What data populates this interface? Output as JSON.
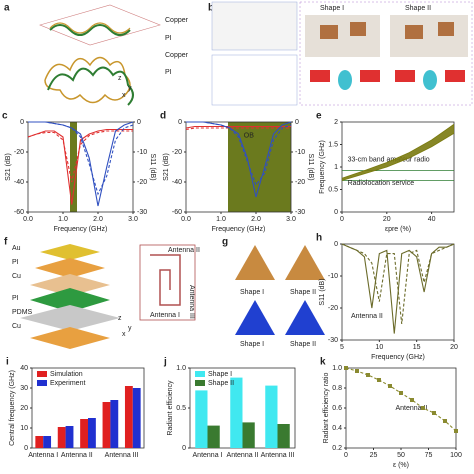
{
  "diagrams": {
    "a": {
      "label": "a",
      "texts": [
        "Copper",
        "PI",
        "Copper",
        "PI"
      ],
      "axes": [
        "z",
        "y",
        "x"
      ]
    },
    "b": {
      "label": "b",
      "texts": [
        "Shape I",
        "Shape II"
      ]
    },
    "f": {
      "label": "f",
      "texts": [
        "Au",
        "PI",
        "Cu",
        "PI",
        "PDMS",
        "Cu",
        "Antenna II",
        "Antenna III",
        "Antenna I"
      ],
      "axes": [
        "z",
        "y",
        "x"
      ]
    },
    "g": {
      "label": "g",
      "texts": [
        "Shape I",
        "Shape II",
        "Shape I",
        "Shape II"
      ]
    }
  },
  "chart_data": [
    {
      "panel": "c",
      "type": "line",
      "xlabel": "Frequency (GHz)",
      "ylabel": "S21 (dB)",
      "y2label": "S11 (dB)",
      "x": [
        0,
        0.25,
        0.5,
        0.75,
        1.0,
        1.25,
        1.5,
        1.75,
        2.0,
        2.25,
        2.5,
        2.75,
        3.0
      ],
      "xlim": [
        0,
        3
      ],
      "xticks": [
        {
          "value": 0,
          "label": "0.0"
        },
        {
          "value": 1,
          "label": "1.0"
        },
        {
          "value": 2,
          "label": "2.0"
        },
        {
          "value": 3,
          "label": "3.0"
        }
      ],
      "ylim": [
        -60,
        0
      ],
      "yticks": [
        0,
        -20,
        -40,
        -60
      ],
      "y2lim": [
        -30,
        0
      ],
      "y2ticks": [
        0,
        -10,
        -20,
        -30
      ],
      "shade": [
        1.2,
        1.4
      ],
      "shade_color": "#6b7a1e",
      "series": [
        {
          "color": "#e03030",
          "values": [
            -10,
            -8,
            -6,
            -6,
            -10,
            -55,
            -12,
            -8,
            -6,
            -5,
            -5,
            -5,
            -5
          ]
        },
        {
          "color": "#e03030",
          "dash": true,
          "values": [
            -10,
            -8,
            -7,
            -7,
            -12,
            -40,
            -15,
            -9,
            -7,
            -6,
            -6,
            -6,
            -6
          ]
        },
        {
          "color": "#3050c0",
          "axis": "y2",
          "values": [
            0,
            0,
            0,
            -0.5,
            -1,
            -2,
            -4,
            -12,
            -28,
            -15,
            -3,
            -1,
            0
          ]
        },
        {
          "color": "#3050c0",
          "axis": "y2",
          "dash": true,
          "values": [
            0,
            0,
            0,
            -0.5,
            -1,
            -2,
            -5,
            -14,
            -24,
            -18,
            -6,
            -2,
            -1
          ]
        }
      ]
    },
    {
      "panel": "d",
      "type": "line",
      "xlabel": "Frequency (GHz)",
      "ylabel": "S21 (dB)",
      "y2label": "S11 (dB)",
      "annotations": [
        "OB"
      ],
      "x": [
        0,
        0.25,
        0.5,
        0.75,
        1.0,
        1.25,
        1.5,
        1.75,
        2.0,
        2.25,
        2.5,
        2.75,
        3.0
      ],
      "xlim": [
        0,
        3
      ],
      "xticks": [
        {
          "value": 0,
          "label": "0.0"
        },
        {
          "value": 1,
          "label": "1.0"
        },
        {
          "value": 2,
          "label": "2.0"
        },
        {
          "value": 3,
          "label": "3.0"
        }
      ],
      "ylim": [
        -60,
        0
      ],
      "yticks": [
        0,
        -20,
        -40,
        -60
      ],
      "y2lim": [
        -30,
        0
      ],
      "y2ticks": [
        0,
        -10,
        -20,
        -30
      ],
      "shade": [
        1.2,
        3.0
      ],
      "shade_color": "#6b7a1e",
      "series": [
        {
          "color": "#e03030",
          "values": [
            -4,
            -3,
            -3,
            -3,
            -3,
            -3,
            -3,
            -3,
            -3,
            -3,
            -3,
            -3,
            -3
          ]
        },
        {
          "color": "#e03030",
          "dash": true,
          "values": [
            -5,
            -4,
            -4,
            -4,
            -4,
            -4,
            -4,
            -4,
            -4,
            -4,
            -4,
            -4,
            -4
          ]
        },
        {
          "color": "#3050c0",
          "axis": "y2",
          "values": [
            0,
            0,
            0,
            -0.5,
            -1,
            -2,
            -4,
            -12,
            -25,
            -15,
            -4,
            -1,
            0
          ]
        },
        {
          "color": "#3050c0",
          "axis": "y2",
          "dash": true,
          "values": [
            0,
            0,
            0,
            -0.5,
            -1,
            -2,
            -5,
            -13,
            -21,
            -17,
            -6,
            -2,
            -1
          ]
        }
      ]
    },
    {
      "panel": "e",
      "type": "band",
      "xlabel": "εpre (%)",
      "ylabel": "Frequency (GHz)",
      "annotations": [
        "33-cm band amateur radio",
        "Radiolocation service"
      ],
      "x": [
        0,
        10,
        20,
        30,
        40,
        50
      ],
      "xlim": [
        0,
        50
      ],
      "xticks": [
        0,
        20,
        40
      ],
      "ylim": [
        0,
        2
      ],
      "yticks": [
        0,
        0.5,
        1,
        1.5,
        2
      ],
      "hlines": [
        0.92,
        0.7
      ],
      "series": [
        {
          "color": "#7a7a10",
          "values": [
            0.7,
            0.85,
            1.0,
            1.2,
            1.45,
            1.75
          ]
        },
        {
          "color": "#7a7a10",
          "values": [
            0.75,
            0.92,
            1.1,
            1.32,
            1.6,
            1.95
          ]
        }
      ]
    },
    {
      "panel": "h",
      "type": "line",
      "xlabel": "Frequency (GHz)",
      "ylabel": "S11 (dB)",
      "annotations": [
        "Antenna II"
      ],
      "x": [
        5,
        6,
        7,
        8,
        9,
        10,
        11,
        12,
        13,
        14,
        15,
        16,
        17,
        18,
        19,
        20
      ],
      "xlim": [
        5,
        20
      ],
      "xticks": [
        5,
        10,
        15,
        20
      ],
      "ylim": [
        -30,
        0
      ],
      "yticks": [
        0,
        -10,
        -20,
        -30
      ],
      "series": [
        {
          "color": "#6b6b2a",
          "values": [
            0,
            -1,
            -2,
            -4,
            -20,
            -3,
            -2,
            -28,
            -3,
            -2,
            -4,
            -15,
            -3,
            -1,
            -1,
            0
          ]
        },
        {
          "color": "#6b6b2a",
          "dash": true,
          "values": [
            0,
            -1,
            -2,
            -3,
            -6,
            -18,
            -3,
            -3,
            -25,
            -3,
            -2,
            -12,
            -3,
            -2,
            -1,
            0
          ]
        }
      ]
    },
    {
      "panel": "i",
      "type": "bar",
      "ylabel": "Central frequency (GHz)",
      "categories": [
        "Antenna I",
        "Antenna II",
        null,
        "Antenna III",
        null
      ],
      "ylim": [
        0,
        40
      ],
      "yticks": [
        0,
        10,
        20,
        30,
        40
      ],
      "legend": "top-left",
      "series": [
        {
          "name": "Simulation",
          "color": "#e02020",
          "values": [
            6,
            10.5,
            14.5,
            23,
            31
          ]
        },
        {
          "name": "Experiment",
          "color": "#2030d0",
          "values": [
            6,
            11,
            15,
            24,
            30
          ]
        }
      ]
    },
    {
      "panel": "j",
      "type": "bar",
      "ylabel": "Radiant efficiency",
      "categories": [
        "Antenna I",
        "Antenna II",
        "Antenna III"
      ],
      "ylim": [
        0,
        1
      ],
      "yticks": [
        0,
        0.5,
        {
          "value": 1,
          "label": "1.0"
        }
      ],
      "legend": "top-left",
      "series": [
        {
          "name": "Shape I",
          "color": "#40e8f0",
          "values": [
            0.72,
            0.88,
            0.78
          ]
        },
        {
          "name": "Shape II",
          "color": "#3a7a30",
          "values": [
            0.28,
            0.32,
            0.3
          ]
        }
      ]
    },
    {
      "panel": "k",
      "type": "scatter-line",
      "xlabel": "ε (%)",
      "ylabel": "Radiant efficiency ratio",
      "annotations": [
        "Antenna II"
      ],
      "x": [
        0,
        10,
        20,
        30,
        40,
        50,
        60,
        70,
        80,
        90,
        100
      ],
      "xlim": [
        0,
        100
      ],
      "xticks": [
        0,
        25,
        50,
        75,
        100
      ],
      "ylim": [
        0.2,
        1
      ],
      "yticks": [
        0.2,
        0.4,
        0.6,
        0.8,
        {
          "value": 1,
          "label": "1.0"
        }
      ],
      "series": [
        {
          "color": "#8a8a30",
          "values": [
            1.0,
            0.97,
            0.93,
            0.88,
            0.82,
            0.75,
            0.68,
            0.6,
            0.55,
            0.47,
            0.37
          ]
        }
      ]
    }
  ]
}
